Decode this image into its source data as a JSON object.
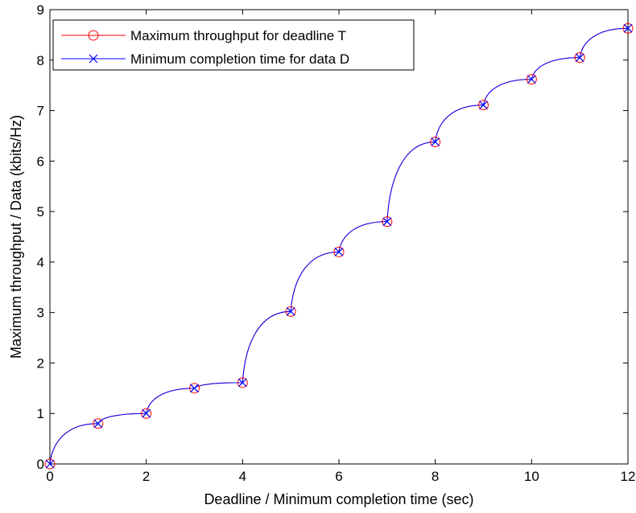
{
  "chart_data": {
    "type": "line",
    "title": "",
    "xlabel": "Deadline / Minimum completion time (sec)",
    "ylabel": "Maximum throughput / Data (kbits/Hz)",
    "xlim": [
      0,
      12
    ],
    "ylim": [
      0,
      9
    ],
    "xticks": [
      "0",
      "2",
      "4",
      "6",
      "8",
      "10",
      "12"
    ],
    "yticks": [
      "0",
      "1",
      "2",
      "3",
      "4",
      "5",
      "6",
      "7",
      "8",
      "9"
    ],
    "grid": false,
    "legend_position": "top-left",
    "x": [
      0,
      1,
      2,
      3,
      4,
      5,
      6,
      7,
      8,
      9,
      10,
      11,
      12
    ],
    "series": [
      {
        "name": "Maximum throughput for deadline T",
        "marker": "circle",
        "color": "#ff0000",
        "values": [
          0,
          0.8,
          1.0,
          1.5,
          1.61,
          3.02,
          4.2,
          4.8,
          6.38,
          7.11,
          7.62,
          8.05,
          8.63
        ]
      },
      {
        "name": "Minimum completion time for data D",
        "marker": "x",
        "color": "#0000ff",
        "values": [
          0,
          0.8,
          1.0,
          1.5,
          1.61,
          3.02,
          4.2,
          4.8,
          6.38,
          7.11,
          7.62,
          8.05,
          8.63
        ]
      }
    ]
  }
}
